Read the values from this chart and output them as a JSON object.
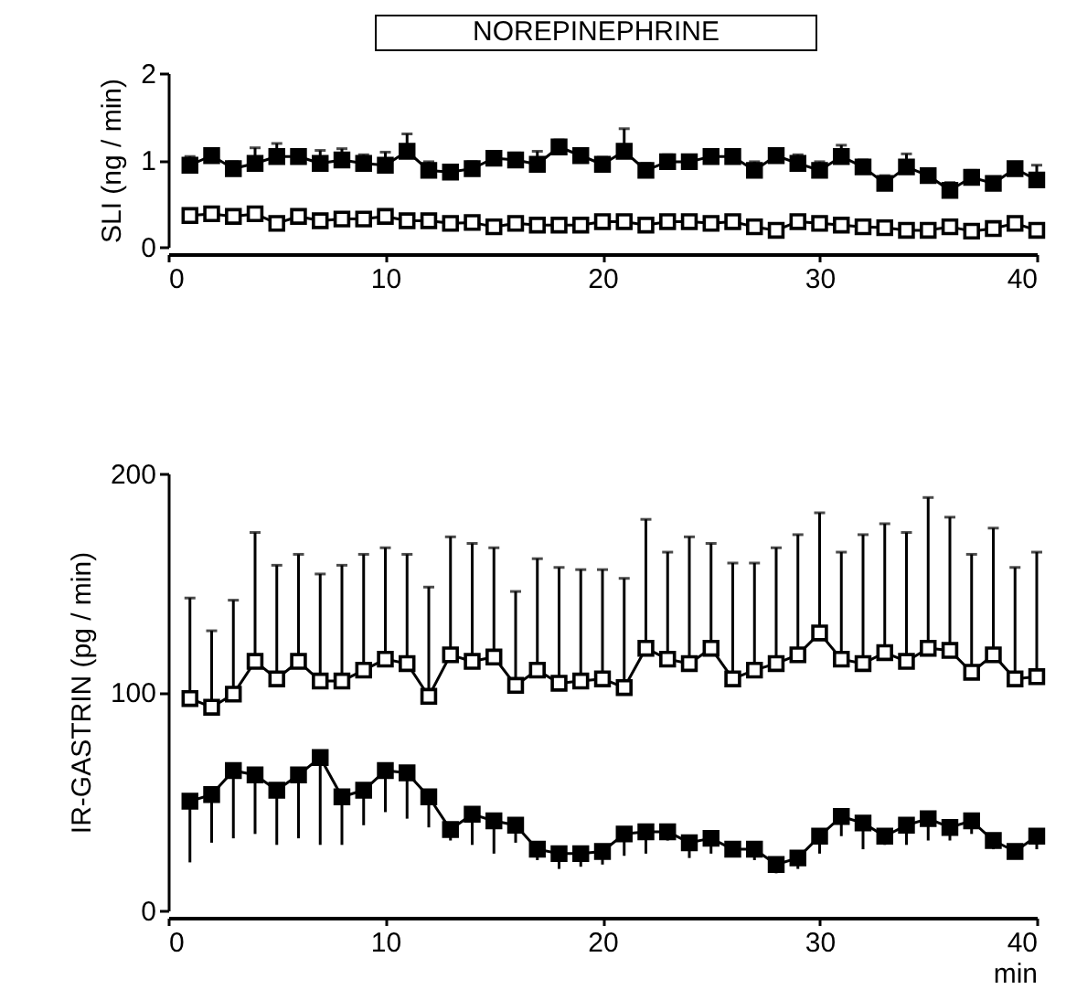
{
  "chart_data": [
    {
      "type": "line",
      "title": "NOREPINEPHRINE",
      "ylabel": "SLI (ng / min)",
      "x": [
        1,
        2,
        3,
        4,
        5,
        6,
        7,
        8,
        9,
        10,
        11,
        12,
        13,
        14,
        15,
        16,
        17,
        18,
        19,
        20,
        21,
        22,
        23,
        24,
        25,
        26,
        27,
        28,
        29,
        30,
        31,
        32,
        33,
        34,
        35,
        36,
        37,
        38,
        39,
        40
      ],
      "xlim": [
        0,
        40
      ],
      "xticks": [
        0,
        10,
        20,
        30,
        40
      ],
      "ylim": [
        0,
        2
      ],
      "yticks": [
        0,
        1,
        2
      ],
      "marker": "square",
      "line_style": "solid",
      "series": [
        {
          "color": "#000000",
          "values": [
            0.94,
            1.05,
            0.9,
            0.96,
            1.04,
            1.04,
            0.96,
            1.0,
            0.96,
            0.94,
            1.1,
            0.88,
            0.86,
            0.9,
            1.02,
            1.0,
            0.95,
            1.15,
            1.05,
            0.95,
            1.1,
            0.88,
            0.98,
            0.98,
            1.04,
            1.04,
            0.88,
            1.05,
            0.96,
            0.88,
            1.04,
            0.92,
            0.73,
            0.92,
            0.82,
            0.65,
            0.8,
            0.73,
            0.9,
            0.77
          ],
          "errors": [
            [
              0.94,
              1.04
            ],
            [
              1.05,
              1.13
            ],
            [
              0.9,
              0.98
            ],
            [
              0.96,
              1.14
            ],
            [
              1.04,
              1.19
            ],
            [
              1.04,
              1.12
            ],
            [
              0.96,
              1.11
            ],
            [
              1.0,
              1.13
            ],
            [
              0.96,
              1.06
            ],
            [
              0.94,
              1.09
            ],
            [
              1.1,
              1.3
            ],
            [
              0.88,
              0.98
            ],
            [
              0.86,
              0.94
            ],
            [
              0.9,
              0.98
            ],
            [
              1.02,
              1.1
            ],
            [
              1.0,
              1.08
            ],
            [
              0.95,
              1.1
            ],
            [
              1.15,
              1.23
            ],
            [
              1.05,
              1.13
            ],
            [
              0.95,
              1.03
            ],
            [
              1.1,
              1.36
            ],
            [
              0.88,
              0.96
            ],
            [
              0.98,
              1.06
            ],
            [
              0.98,
              1.04
            ],
            [
              1.04,
              1.1
            ],
            [
              1.04,
              1.1
            ],
            [
              0.88,
              0.98
            ],
            [
              1.05,
              1.13
            ],
            [
              0.96,
              1.06
            ],
            [
              0.88,
              0.98
            ],
            [
              1.04,
              1.17
            ],
            [
              0.92,
              1.0
            ],
            [
              0.73,
              0.82
            ],
            [
              0.92,
              1.07
            ],
            [
              0.82,
              0.9
            ],
            [
              0.65,
              0.74
            ],
            [
              0.8,
              0.88
            ],
            [
              0.73,
              0.8
            ],
            [
              0.9,
              0.97
            ],
            [
              0.77,
              0.94
            ]
          ]
        },
        {
          "color": "#000000",
          "values": [
            0.36,
            0.38,
            0.35,
            0.38,
            0.27,
            0.35,
            0.3,
            0.32,
            0.32,
            0.35,
            0.3,
            0.3,
            0.27,
            0.28,
            0.23,
            0.27,
            0.25,
            0.25,
            0.25,
            0.29,
            0.29,
            0.25,
            0.29,
            0.29,
            0.27,
            0.29,
            0.23,
            0.19,
            0.29,
            0.27,
            0.25,
            0.23,
            0.22,
            0.19,
            0.19,
            0.23,
            0.18,
            0.21,
            0.27,
            0.19
          ]
        }
      ]
    },
    {
      "type": "line",
      "ylabel": "IR-GASTRIN (pg / min)",
      "xlabel": "min",
      "x": [
        1,
        2,
        3,
        4,
        5,
        6,
        7,
        8,
        9,
        10,
        11,
        12,
        13,
        14,
        15,
        16,
        17,
        18,
        19,
        20,
        21,
        22,
        23,
        24,
        25,
        26,
        27,
        28,
        29,
        30,
        31,
        32,
        33,
        34,
        35,
        36,
        37,
        38,
        39,
        40
      ],
      "xlim": [
        0,
        40
      ],
      "xticks": [
        0,
        10,
        20,
        30,
        40
      ],
      "ylim": [
        0,
        200
      ],
      "yticks": [
        0,
        100,
        200
      ],
      "marker": "square",
      "line_style": "solid",
      "series": [
        {
          "color": "#000000",
          "values": [
            50,
            53,
            64,
            62,
            55,
            62,
            70,
            52,
            55,
            64,
            63,
            52,
            37,
            44,
            41,
            39,
            28,
            26,
            26,
            27,
            35,
            36,
            36,
            31,
            33,
            28,
            28,
            21,
            24,
            34,
            43,
            40,
            34,
            39,
            42,
            38,
            41,
            32,
            27,
            34
          ],
          "errors": [
            [
              22,
              50
            ],
            [
              31,
              53
            ],
            [
              33,
              64
            ],
            [
              35,
              62
            ],
            [
              30,
              55
            ],
            [
              33,
              62
            ],
            [
              30,
              70
            ],
            [
              30,
              52
            ],
            [
              39,
              55
            ],
            [
              45,
              64
            ],
            [
              42,
              63
            ],
            [
              38,
              52
            ],
            [
              32,
              37
            ],
            [
              30,
              44
            ],
            [
              26,
              41
            ],
            [
              31,
              39
            ],
            [
              23,
              28
            ],
            [
              19,
              26
            ],
            [
              20,
              26
            ],
            [
              21,
              27
            ],
            [
              25,
              35
            ],
            [
              26,
              36
            ],
            [
              32,
              36
            ],
            [
              24,
              31
            ],
            [
              26,
              33
            ],
            [
              25,
              28
            ],
            [
              23,
              28
            ],
            [
              17,
              21
            ],
            [
              19,
              24
            ],
            [
              26,
              34
            ],
            [
              34,
              43
            ],
            [
              28,
              40
            ],
            [
              30,
              34
            ],
            [
              30,
              39
            ],
            [
              32,
              42
            ],
            [
              32,
              38
            ],
            [
              35,
              41
            ],
            [
              28,
              32
            ],
            [
              24,
              27
            ],
            [
              28,
              34
            ]
          ]
        },
        {
          "color": "#000000",
          "values": [
            97,
            93,
            99,
            114,
            106,
            114,
            105,
            105,
            110,
            115,
            113,
            98,
            117,
            114,
            116,
            103,
            110,
            104,
            105,
            106,
            102,
            120,
            115,
            113,
            120,
            106,
            110,
            113,
            117,
            127,
            115,
            113,
            118,
            114,
            120,
            119,
            109,
            117,
            106,
            107
          ],
          "errors": [
            [
              97,
              143
            ],
            [
              93,
              128
            ],
            [
              99,
              142
            ],
            [
              114,
              173
            ],
            [
              106,
              158
            ],
            [
              114,
              163
            ],
            [
              105,
              154
            ],
            [
              105,
              158
            ],
            [
              110,
              163
            ],
            [
              115,
              166
            ],
            [
              113,
              163
            ],
            [
              98,
              148
            ],
            [
              117,
              171
            ],
            [
              114,
              168
            ],
            [
              116,
              166
            ],
            [
              103,
              146
            ],
            [
              110,
              161
            ],
            [
              104,
              157
            ],
            [
              105,
              156
            ],
            [
              106,
              156
            ],
            [
              102,
              152
            ],
            [
              120,
              179
            ],
            [
              115,
              164
            ],
            [
              113,
              171
            ],
            [
              120,
              168
            ],
            [
              106,
              159
            ],
            [
              110,
              159
            ],
            [
              113,
              166
            ],
            [
              117,
              172
            ],
            [
              127,
              182
            ],
            [
              115,
              164
            ],
            [
              113,
              172
            ],
            [
              118,
              177
            ],
            [
              114,
              173
            ],
            [
              120,
              189
            ],
            [
              119,
              180
            ],
            [
              109,
              163
            ],
            [
              117,
              175
            ],
            [
              106,
              157
            ],
            [
              107,
              164
            ]
          ]
        }
      ]
    }
  ]
}
